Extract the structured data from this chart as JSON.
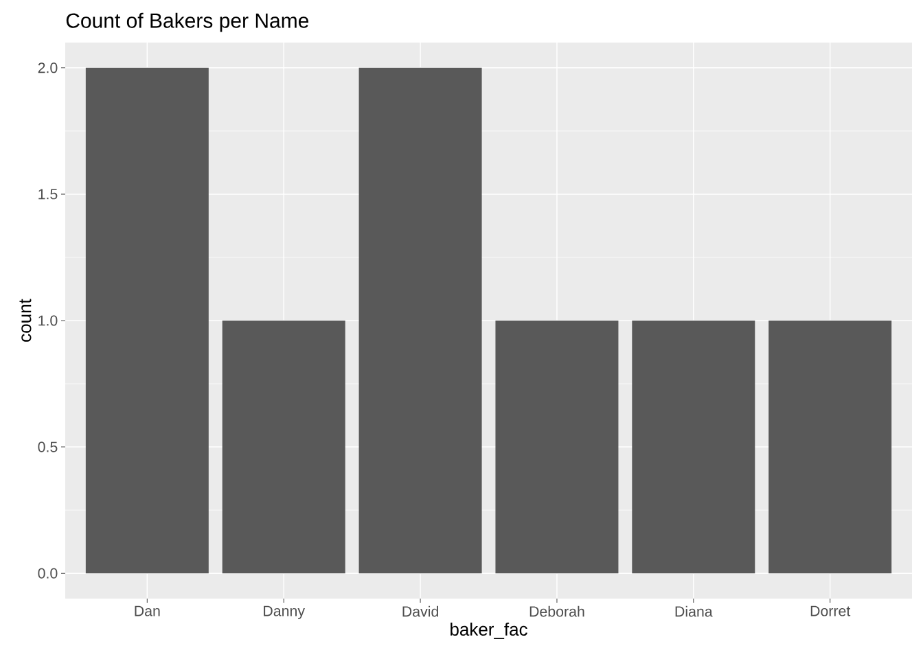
{
  "chart_data": {
    "type": "bar",
    "title": "Count of Bakers per Name",
    "xlabel": "baker_fac",
    "ylabel": "count",
    "categories": [
      "Dan",
      "Danny",
      "David",
      "Deborah",
      "Diana",
      "Dorret"
    ],
    "values": [
      2,
      1,
      2,
      1,
      1,
      1
    ],
    "color": "#595959",
    "ylim": [
      -0.1,
      2.1
    ],
    "yticks": [
      {
        "value": 0,
        "label": "0.0"
      },
      {
        "value": 0.5,
        "label": "0.5"
      },
      {
        "value": 1,
        "label": "1.0"
      },
      {
        "value": 1.5,
        "label": "1.5"
      },
      {
        "value": 2,
        "label": "2.0"
      }
    ],
    "grid": true
  }
}
